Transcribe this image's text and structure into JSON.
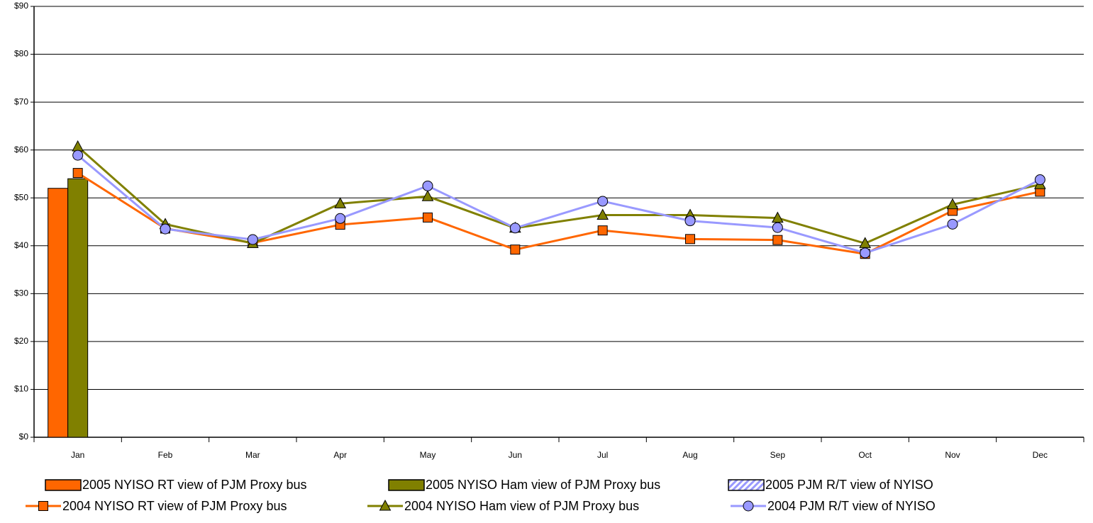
{
  "chart_data": {
    "type": "bar_line",
    "categories": [
      "Jan",
      "Feb",
      "Mar",
      "Apr",
      "May",
      "Jun",
      "Jul",
      "Aug",
      "Sep",
      "Oct",
      "Nov",
      "Dec"
    ],
    "series": [
      {
        "name": "2005 NYISO RT view of PJM Proxy bus",
        "type": "bar",
        "color": "#ff6600",
        "values": [
          52,
          null,
          null,
          null,
          null,
          null,
          null,
          null,
          null,
          null,
          null,
          null
        ]
      },
      {
        "name": "2005 NYISO Ham view of PJM Proxy bus",
        "type": "bar",
        "color": "#808000",
        "values": [
          54,
          null,
          null,
          null,
          null,
          null,
          null,
          null,
          null,
          null,
          null,
          null
        ]
      },
      {
        "name": "2005 PJM R/T view of NYISO",
        "type": "bar",
        "color": "#9999ff",
        "pattern": "hatch",
        "values": [
          null,
          null,
          null,
          null,
          null,
          null,
          null,
          null,
          null,
          null,
          null,
          null
        ]
      },
      {
        "name": "2004 NYISO RT view of PJM Proxy bus",
        "type": "line",
        "color": "#ff6600",
        "marker": "square",
        "values": [
          55.2,
          43.6,
          40.6,
          44.4,
          45.9,
          39.2,
          43.2,
          41.4,
          41.2,
          38.3,
          47.3,
          51.3
        ]
      },
      {
        "name": "2004 NYISO Ham view of PJM Proxy bus",
        "type": "line",
        "color": "#808000",
        "marker": "triangle",
        "values": [
          60.7,
          44.5,
          40.5,
          48.8,
          50.3,
          43.7,
          46.4,
          46.4,
          45.8,
          40.5,
          48.6,
          52.8
        ]
      },
      {
        "name": "2004 PJM R/T view of NYISO",
        "type": "line",
        "color": "#9999ff",
        "marker": "circle",
        "values": [
          58.9,
          43.5,
          41.3,
          45.7,
          52.5,
          43.7,
          49.3,
          45.2,
          43.8,
          38.5,
          44.5,
          53.8
        ]
      }
    ],
    "ylim": [
      0,
      90
    ],
    "yticks": [
      {
        "value": 0,
        "label": "$0"
      },
      {
        "value": 10,
        "label": "$10"
      },
      {
        "value": 20,
        "label": "$20"
      },
      {
        "value": 30,
        "label": "$30"
      },
      {
        "value": 40,
        "label": "$40"
      },
      {
        "value": 50,
        "label": "$50"
      },
      {
        "value": 60,
        "label": "$60"
      },
      {
        "value": 70,
        "label": "$70"
      },
      {
        "value": 80,
        "label": "$80"
      },
      {
        "value": 90,
        "label": "$90"
      }
    ],
    "grid": true,
    "legend": "bottom"
  }
}
